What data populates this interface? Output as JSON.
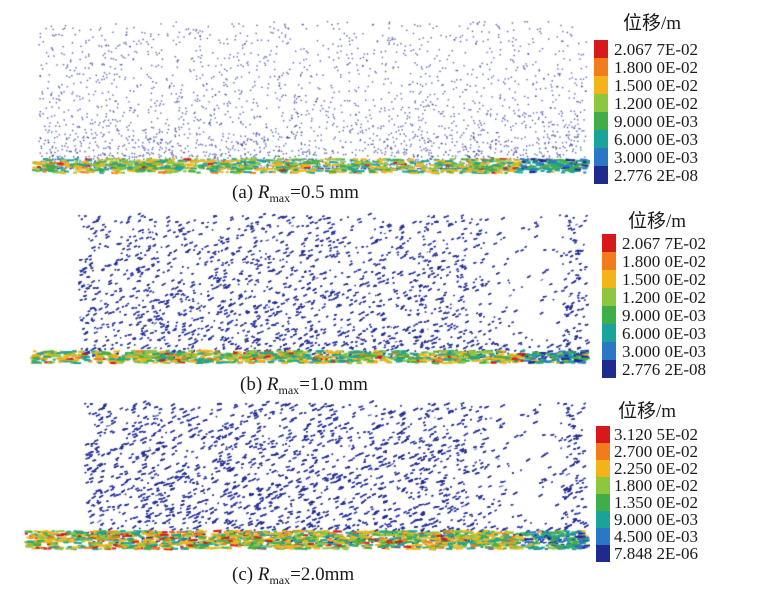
{
  "colors": [
    "#d7191c",
    "#f07c1b",
    "#f3b41a",
    "#8fc640",
    "#3fae49",
    "#1aa39a",
    "#2a78c4",
    "#1f2a8c"
  ],
  "panels": [
    {
      "legend_title": "位移/m",
      "legend_values": [
        "2.067 7E-02",
        "1.800 0E-02",
        "1.500 0E-02",
        "1.200 0E-02",
        "9.000 0E-03",
        "6.000 0E-03",
        "3.000 0E-03",
        "2.776 2E-08"
      ],
      "caption_prefix": "(a) ",
      "caption_var": "R",
      "caption_sub": "max",
      "caption_suffix": "=0.5 mm"
    },
    {
      "legend_title": "位移/m",
      "legend_values": [
        "2.067 7E-02",
        "1.800 0E-02",
        "1.500 0E-02",
        "1.200 0E-02",
        "9.000 0E-03",
        "6.000 0E-03",
        "3.000 0E-03",
        "2.776 2E-08"
      ],
      "caption_prefix": "(b) ",
      "caption_var": "R",
      "caption_sub": "max",
      "caption_suffix": "=1.0 mm"
    },
    {
      "legend_title": "位移/m",
      "legend_values": [
        "3.120 5E-02",
        "2.700 0E-02",
        "2.250 0E-02",
        "1.800 0E-02",
        "1.350 0E-02",
        "9.000 0E-03",
        "4.500 0E-03",
        "7.848 2E-06"
      ],
      "caption_prefix": "(c) ",
      "caption_var": "R",
      "caption_sub": "max",
      "caption_suffix": "=2.0mm"
    }
  ]
}
